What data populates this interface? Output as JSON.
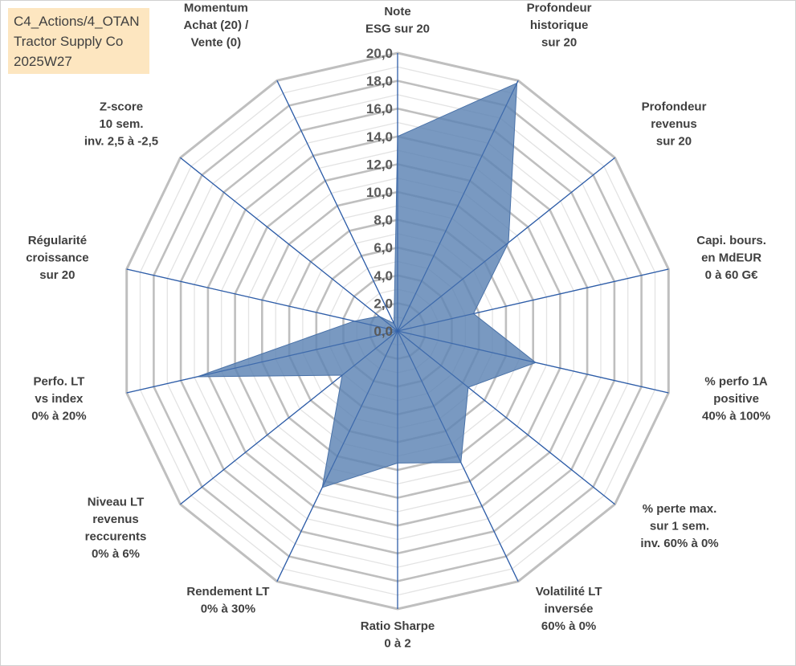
{
  "header": {
    "line1": "C4_Actions/4_OTAN",
    "line2": "Tractor Supply Co",
    "line3": "2025W27"
  },
  "colors": {
    "fill": "#5b82b3",
    "axis": "#2f5ea8",
    "grid_major": "#bfbfbf",
    "grid_minor": "#e3e3e3",
    "title_bg": "#fde6c0"
  },
  "chart_data": {
    "type": "radar",
    "title": "",
    "range": [
      0,
      20
    ],
    "major_step": 2,
    "minor_step": 1,
    "tick_labels": [
      "0,0",
      "2,0",
      "4,0",
      "6,0",
      "8,0",
      "10,0",
      "12,0",
      "14,0",
      "16,0",
      "18,0",
      "20,0"
    ],
    "axes": [
      [
        "Note",
        "ESG sur 20"
      ],
      [
        "Profondeur",
        "historique",
        "sur 20"
      ],
      [
        "Profondeur",
        "revenus",
        "sur 20"
      ],
      [
        "Capi. bours.",
        "en MdEUR",
        "0 à 60 G€"
      ],
      [
        "% perfo 1A",
        "positive",
        "40% à 100%"
      ],
      [
        "% perte max.",
        "sur 1 sem.",
        "inv. 60% à 0%"
      ],
      [
        "Volatilité LT",
        "inversée",
        "60% à 0%"
      ],
      [
        "Ratio Sharpe",
        "0 à 2"
      ],
      [
        "Rendement LT",
        "0% à 30%"
      ],
      [
        "Niveau LT",
        "revenus",
        "reccurents",
        "0% à 6%"
      ],
      [
        "Perfo. LT",
        "vs index",
        "0% à 20%"
      ],
      [
        "Régularité",
        "croissance",
        "sur 20"
      ],
      [
        "Z-score",
        "10 sem.",
        "inv. 2,5 à -2,5"
      ],
      [
        "Momentum",
        "Achat (20) /",
        "Vente (0)"
      ]
    ],
    "values": [
      14.0,
      19.8,
      10.2,
      5.6,
      10.2,
      6.5,
      10.5,
      9.5,
      12.5,
      5.1,
      14.8,
      3.2,
      1.7,
      0.6
    ]
  }
}
